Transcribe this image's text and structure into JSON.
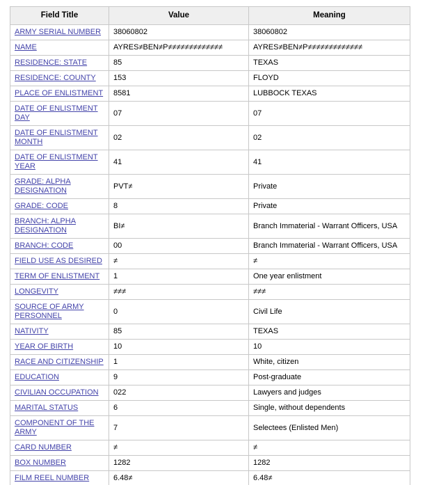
{
  "page": {
    "background": "#ffffff"
  },
  "table": {
    "headers": [
      "Field Title",
      "Value",
      "Meaning"
    ],
    "colors": {
      "header_bg": "#efefef",
      "border": "#c8c8c8",
      "link": "#4444aa",
      "text": "#000000"
    },
    "rows": [
      {
        "title": "ARMY SERIAL NUMBER",
        "value": "38060802",
        "meaning": "38060802"
      },
      {
        "title": "NAME",
        "value": "AYRES≠BEN≠P≠≠≠≠≠≠≠≠≠≠≠≠≠",
        "meaning": "AYRES≠BEN≠P≠≠≠≠≠≠≠≠≠≠≠≠≠"
      },
      {
        "title": "RESIDENCE: STATE",
        "value": "85",
        "meaning": "TEXAS"
      },
      {
        "title": "RESIDENCE: COUNTY",
        "value": "153",
        "meaning": "FLOYD"
      },
      {
        "title": "PLACE OF ENLISTMENT",
        "value": "8581",
        "meaning": "LUBBOCK TEXAS"
      },
      {
        "title": "DATE OF ENLISTMENT DAY",
        "value": "07",
        "meaning": "07"
      },
      {
        "title": "DATE OF ENLISTMENT MONTH",
        "value": "02",
        "meaning": "02"
      },
      {
        "title": "DATE OF ENLISTMENT YEAR",
        "value": "41",
        "meaning": "41"
      },
      {
        "title": "GRADE: ALPHA DESIGNATION",
        "value": "PVT≠",
        "meaning": "Private"
      },
      {
        "title": "GRADE: CODE",
        "value": "8",
        "meaning": "Private"
      },
      {
        "title": "BRANCH: ALPHA DESIGNATION",
        "value": "BI≠",
        "meaning": "Branch Immaterial - Warrant Officers, USA"
      },
      {
        "title": "BRANCH: CODE",
        "value": "00",
        "meaning": "Branch Immaterial - Warrant Officers, USA"
      },
      {
        "title": "FIELD USE AS DESIRED",
        "value": "≠",
        "meaning": "≠"
      },
      {
        "title": "TERM OF ENLISTMENT",
        "value": "1",
        "meaning": "One year enlistment"
      },
      {
        "title": "LONGEVITY",
        "value": "≠≠≠",
        "meaning": "≠≠≠"
      },
      {
        "title": "SOURCE OF ARMY PERSONNEL",
        "value": "0",
        "meaning": "Civil Life"
      },
      {
        "title": "NATIVITY",
        "value": "85",
        "meaning": "TEXAS"
      },
      {
        "title": "YEAR OF BIRTH",
        "value": "10",
        "meaning": "10"
      },
      {
        "title": "RACE AND CITIZENSHIP",
        "value": "1",
        "meaning": "White, citizen"
      },
      {
        "title": "EDUCATION",
        "value": "9",
        "meaning": "Post-graduate"
      },
      {
        "title": "CIVILIAN OCCUPATION",
        "value": "022",
        "meaning": "Lawyers and judges"
      },
      {
        "title": "MARITAL STATUS",
        "value": "6",
        "meaning": "Single, without dependents"
      },
      {
        "title": "COMPONENT OF THE ARMY",
        "value": "7",
        "meaning": "Selectees (Enlisted Men)"
      },
      {
        "title": "CARD NUMBER",
        "value": "≠",
        "meaning": "≠"
      },
      {
        "title": "BOX NUMBER",
        "value": "1282",
        "meaning": "1282"
      },
      {
        "title": "FILM REEL NUMBER",
        "value": "6.48≠",
        "meaning": "6.48≠"
      }
    ]
  }
}
